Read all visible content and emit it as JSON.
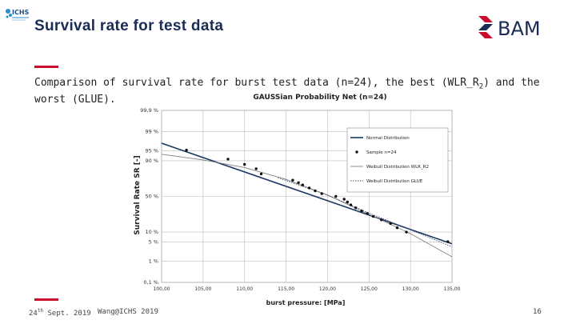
{
  "header": {
    "ichs_logo_text": "ICHS",
    "title": "Survival rate for test data",
    "bam_logo_text": "BAM",
    "subtitle_main": "Comparison of survival rate for burst test data (n=24), the best (WLR_R",
    "subtitle_sub": "2",
    "subtitle_end": ") and the worst (GLUE)."
  },
  "footer": {
    "date_day": "24",
    "date_sup": "th",
    "date_rest": " Sept. 2019",
    "author": "Wang@ICHS 2019",
    "page": "16"
  },
  "colors": {
    "title": "#1a2b55",
    "accent_red": "#c8102e",
    "normal_line": "#1f3864",
    "weibull_line": "#7f7f7f",
    "glue_line": "#3a4a6a"
  },
  "chart_data": {
    "type": "scatter",
    "title": "GAUSSian Probability Net (n=24)",
    "xlabel": "burst pressure: [MPa]",
    "ylabel": "Survival Rate SR [-]",
    "scale_y": "probability (normal)",
    "xlim": [
      100,
      135
    ],
    "x_ticks": [
      100,
      105,
      110,
      115,
      120,
      125,
      130,
      135
    ],
    "x_tick_labels": [
      "100,00",
      "105,00",
      "110,00",
      "115,00",
      "120,00",
      "125,00",
      "130,00",
      "135,00"
    ],
    "y_ticks": [
      0.1,
      1,
      5,
      10,
      50,
      90,
      95,
      99,
      99.9
    ],
    "y_tick_labels": [
      "0,1 %",
      "1 %",
      "5 %",
      "10 %",
      "50 %",
      "90 %",
      "95 %",
      "99 %",
      "99,9 %"
    ],
    "grid": true,
    "legend_position": "top-right",
    "legend": [
      "Normal Distribution",
      "Sample n=24",
      "Weibull Distribution WLR_R2",
      "Weibull Distribution GLUE"
    ],
    "series": [
      {
        "name": "Normal Distribution",
        "style": "solid-dark",
        "points": [
          [
            100,
            97.2
          ],
          [
            135,
            4.4
          ]
        ]
      },
      {
        "name": "Sample n=24",
        "style": "dots",
        "points": [
          [
            103.0,
            95.2
          ],
          [
            108.0,
            91.0
          ],
          [
            110.0,
            87.5
          ],
          [
            111.4,
            84.0
          ],
          [
            112.0,
            79.0
          ],
          [
            115.8,
            72.0
          ],
          [
            116.5,
            69.0
          ],
          [
            117.0,
            66.0
          ],
          [
            117.8,
            62.0
          ],
          [
            118.5,
            58.0
          ],
          [
            119.3,
            54.0
          ],
          [
            121.0,
            50.0
          ],
          [
            122.0,
            46.0
          ],
          [
            122.4,
            42.0
          ],
          [
            122.8,
            38.0
          ],
          [
            123.4,
            34.0
          ],
          [
            124.1,
            30.0
          ],
          [
            124.8,
            27.0
          ],
          [
            125.5,
            23.5
          ],
          [
            126.5,
            20.0
          ],
          [
            127.6,
            16.5
          ],
          [
            128.4,
            13.0
          ],
          [
            129.5,
            10.0
          ],
          [
            134.5,
            5.2
          ]
        ]
      },
      {
        "name": "Weibull Distribution WLR_R2",
        "style": "solid-gray",
        "points": [
          [
            100,
            93.5
          ],
          [
            105,
            90.5
          ],
          [
            110,
            85.0
          ],
          [
            115,
            73.0
          ],
          [
            120,
            52.0
          ],
          [
            125,
            26.0
          ],
          [
            130,
            9.0
          ],
          [
            135,
            1.5
          ]
        ]
      },
      {
        "name": "Weibull Distribution GLUE",
        "style": "dotted",
        "points": [
          [
            114,
            75.0
          ],
          [
            120,
            52.0
          ],
          [
            125,
            27.5
          ],
          [
            130,
            11.5
          ],
          [
            135,
            3.5
          ]
        ]
      }
    ]
  }
}
